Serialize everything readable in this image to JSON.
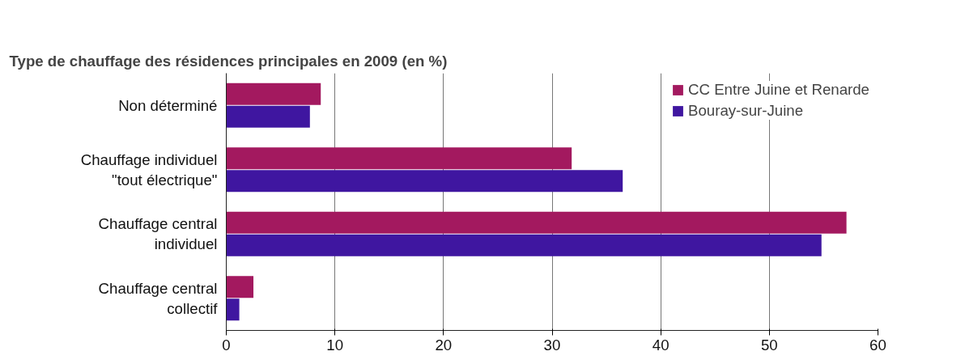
{
  "chart_data": {
    "type": "bar",
    "orientation": "horizontal",
    "title": "Type de chauffage des résidences principales en 2009 (en %)",
    "categories": [
      "Non déterminé",
      "Chauffage individuel \"tout électrique\"",
      "Chauffage central individuel",
      "Chauffage central collectif"
    ],
    "series": [
      {
        "name": "CC Entre Juine et Renarde",
        "color": "#a3195f",
        "values": [
          8.7,
          31.8,
          57.1,
          2.5
        ]
      },
      {
        "name": "Bouray-sur-Juine",
        "color": "#3f16a0",
        "values": [
          7.7,
          36.5,
          54.8,
          1.2
        ]
      }
    ],
    "xlim": [
      0,
      60
    ],
    "xticks": [
      0,
      10,
      20,
      30,
      40,
      50,
      60
    ],
    "grid": "x",
    "legend": "top right"
  }
}
